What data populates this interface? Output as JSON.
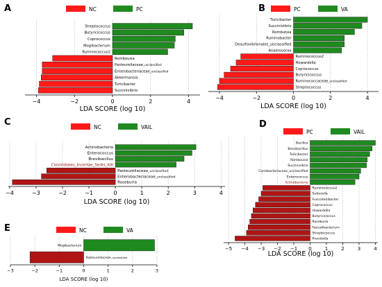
{
  "figure": {
    "x_label": "LDA SCORE (log 10)"
  },
  "chart_data": [
    {
      "panel": "A",
      "type": "bar",
      "orientation": "horizontal",
      "legend": [
        {
          "name": "NC",
          "color": "#ff1a1a"
        },
        {
          "name": "PC",
          "color": "#1f8a1f"
        }
      ],
      "xlabel": "LDA SCORE (log 10)",
      "xlim": [
        -4.6,
        4.6
      ],
      "xticks": [
        -4,
        -2,
        0,
        2,
        4
      ],
      "grid": true,
      "bars": [
        {
          "label": "Streptococcus",
          "value": 4.2,
          "group": "PC"
        },
        {
          "label": "Butyricicoccus",
          "value": 3.75,
          "group": "PC"
        },
        {
          "label": "Coprococcus",
          "value": 3.3,
          "group": "PC"
        },
        {
          "label": "Mogibacterium",
          "value": 3.25,
          "group": "PC"
        },
        {
          "label": "Ruminococcus2",
          "value": 2.9,
          "group": "PC"
        },
        {
          "label": "Rombousia",
          "value": -3.15,
          "group": "NC"
        },
        {
          "label": "Pasteurellaceae_unclassified",
          "value": -3.7,
          "group": "NC"
        },
        {
          "label": "Enterobacteriaceae_unclassified",
          "value": -3.7,
          "group": "NC"
        },
        {
          "label": "Akkermansia",
          "value": -3.75,
          "group": "NC"
        },
        {
          "label": "Turicibacter",
          "value": -3.85,
          "group": "NC"
        },
        {
          "label": "Succinivibrio",
          "value": -3.9,
          "group": "NC"
        }
      ]
    },
    {
      "panel": "B",
      "type": "bar",
      "orientation": "horizontal",
      "legend": [
        {
          "name": "PC",
          "color": "#ff1a1a"
        },
        {
          "name": "VA",
          "color": "#1f8a1f"
        }
      ],
      "xlabel": "LDA SCORE (log 10)",
      "xlim": [
        -4.6,
        4.6
      ],
      "xticks": [
        -4,
        -2,
        0,
        2,
        4
      ],
      "grid": true,
      "bars": [
        {
          "label": "Turicibacter",
          "value": 4.0,
          "group": "VA"
        },
        {
          "label": "Succinivibrio",
          "value": 3.7,
          "group": "VA"
        },
        {
          "label": "Rombutsia",
          "value": 3.3,
          "group": "VA"
        },
        {
          "label": "Ruminobacter",
          "value": 2.75,
          "group": "VA"
        },
        {
          "label": "Desulfovibrionales_unclassified",
          "value": 2.75,
          "group": "VA"
        },
        {
          "label": "Anaerovorax",
          "value": 2.6,
          "group": "VA"
        },
        {
          "label": "Ruminococcus2",
          "value": -2.85,
          "group": "PC"
        },
        {
          "label": "Howardella",
          "value": -3.1,
          "group": "PC"
        },
        {
          "label": "Coprococcus",
          "value": -3.4,
          "group": "PC"
        },
        {
          "label": "Butyricicoccus",
          "value": -3.75,
          "group": "PC"
        },
        {
          "label": "Ruminococcaceae_unclassified",
          "value": -4.0,
          "group": "PC"
        },
        {
          "label": "Streptococcus",
          "value": -4.1,
          "group": "PC"
        }
      ]
    },
    {
      "panel": "C",
      "type": "bar",
      "orientation": "horizontal",
      "legend": [
        {
          "name": "NC",
          "color": "#ff1a1a"
        },
        {
          "name": "VAIL",
          "color": "#1f8a1f"
        }
      ],
      "xlabel": "LDA SCORE (log 10)",
      "xlim": [
        -4.05,
        4.15
      ],
      "xticks": [
        -4,
        -3,
        -2,
        -1,
        0,
        1,
        2,
        3,
        4
      ],
      "grid": true,
      "bars": [
        {
          "label": "Actinobacteria",
          "value": 3.05,
          "group": "VAIL"
        },
        {
          "label": "Enterococcus",
          "value": 2.9,
          "group": "VAIL"
        },
        {
          "label": "Brevibacillus",
          "value": 2.6,
          "group": "VAIL"
        },
        {
          "label": "Clostridiales_Incertae_Sedis_XIII",
          "value": 2.3,
          "group": "VAIL"
        },
        {
          "label": "Pasteurellaceae_unclassified",
          "value": -2.6,
          "group": "NC"
        },
        {
          "label": "Enterobacteriaceae_unclassified",
          "value": -2.8,
          "group": "NC"
        },
        {
          "label": "Roseburia",
          "value": -3.9,
          "group": "NC"
        }
      ]
    },
    {
      "panel": "D",
      "type": "bar",
      "orientation": "horizontal",
      "legend": [
        {
          "name": "PC",
          "color": "#ff1a1a"
        },
        {
          "name": "VAIL",
          "color": "#1f8a1f"
        }
      ],
      "xlabel": "LDA SCORE (log 10)",
      "xlim": [
        -5.3,
        4.15
      ],
      "xticks": [
        -5,
        -4,
        -3,
        -2,
        -1,
        0,
        1,
        2,
        3,
        4
      ],
      "grid": true,
      "bars": [
        {
          "label": "Bacillus",
          "value": 4.0,
          "group": "VAIL"
        },
        {
          "label": "Brevibacillus",
          "value": 3.8,
          "group": "VAIL"
        },
        {
          "label": "Turicibacter",
          "value": 3.65,
          "group": "VAIL"
        },
        {
          "label": "Rombousia",
          "value": 3.5,
          "group": "VAIL"
        },
        {
          "label": "Succinivibrio",
          "value": 3.45,
          "group": "VAIL"
        },
        {
          "label": "Coriobacteriaceae_unclassified",
          "value": 3.1,
          "group": "VAIL"
        },
        {
          "label": "Enterococcus",
          "value": 3.0,
          "group": "VAIL"
        },
        {
          "label": "Actinobacteria",
          "value": 2.75,
          "group": "VAIL"
        },
        {
          "label": "Ruminococcus2",
          "value": -2.9,
          "group": "PC"
        },
        {
          "label": "Sutterella",
          "value": -3.0,
          "group": "PC"
        },
        {
          "label": "Fusicatenibacter",
          "value": -3.15,
          "group": "PC"
        },
        {
          "label": "Coprococcus",
          "value": -3.35,
          "group": "PC"
        },
        {
          "label": "Howardella",
          "value": -3.5,
          "group": "PC"
        },
        {
          "label": "Butyricicoccus",
          "value": -3.6,
          "group": "PC"
        },
        {
          "label": "Roseburia",
          "value": -3.7,
          "group": "PC"
        },
        {
          "label": "Faecalibacterium",
          "value": -3.8,
          "group": "PC"
        },
        {
          "label": "Streptococcus",
          "value": -3.9,
          "group": "PC"
        },
        {
          "label": "Prevotella",
          "value": -4.6,
          "group": "PC"
        }
      ]
    },
    {
      "panel": "E",
      "type": "bar",
      "orientation": "horizontal",
      "legend": [
        {
          "name": "NC",
          "color": "#ff1a1a"
        },
        {
          "name": "VA",
          "color": "#1f8a1f"
        }
      ],
      "xlabel": "LDA SCORE (log 10)",
      "xlim": [
        -3.0,
        3.0
      ],
      "xticks": [
        -3,
        -2,
        -1,
        0,
        1,
        2,
        3
      ],
      "grid": true,
      "bars": [
        {
          "label": "Mogibacterium",
          "value": 2.9,
          "group": "VA"
        },
        {
          "label": "Pasteurellaceae_unclassified",
          "value": -2.2,
          "group": "NC"
        }
      ]
    }
  ]
}
